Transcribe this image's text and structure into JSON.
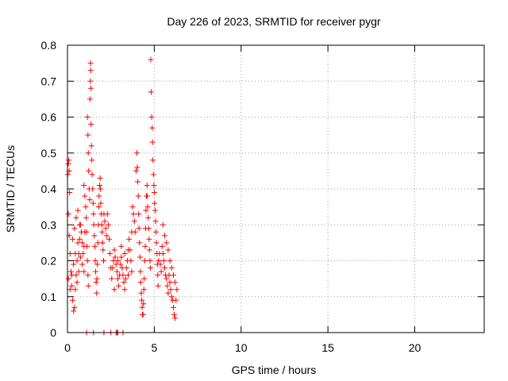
{
  "chart_data": {
    "type": "scatter",
    "title": "Day 226 of 2023, SRMTID for receiver pygr",
    "xlabel": "GPS time / hours",
    "ylabel": "SRMTID / TECUs",
    "xlim": [
      0,
      24
    ],
    "ylim": [
      0,
      0.8
    ],
    "xticks": [
      0,
      5,
      10,
      15,
      20
    ],
    "xtick_labels": [
      "0",
      "5",
      "10",
      "15",
      "20"
    ],
    "yticks": [
      0,
      0.1,
      0.2,
      0.3,
      0.4,
      0.5,
      0.6,
      0.7,
      0.8
    ],
    "ytick_labels": [
      "0",
      "0.1",
      "0.2",
      "0.3",
      "0.4",
      "0.5",
      "0.6",
      "0.7",
      "0.8"
    ],
    "grid": true,
    "marker": "+",
    "color": "#ff0000",
    "series": [
      {
        "name": "SRMTID",
        "points": [
          [
            0.02,
            0.44
          ],
          [
            0.05,
            0.47
          ],
          [
            0.08,
            0.48
          ],
          [
            0.1,
            0.45
          ],
          [
            0.12,
            0.39
          ],
          [
            0.05,
            0.33
          ],
          [
            0.1,
            0.27
          ],
          [
            0.15,
            0.22
          ],
          [
            0.2,
            0.17
          ],
          [
            0.25,
            0.13
          ],
          [
            0.3,
            0.09
          ],
          [
            0.35,
            0.06
          ],
          [
            0.4,
            0.07
          ],
          [
            0.45,
            0.12
          ],
          [
            0.5,
            0.16
          ],
          [
            0.55,
            0.2
          ],
          [
            0.6,
            0.25
          ],
          [
            0.65,
            0.22
          ],
          [
            0.7,
            0.26
          ],
          [
            0.75,
            0.3
          ],
          [
            0.8,
            0.28
          ],
          [
            0.85,
            0.25
          ],
          [
            0.9,
            0.22
          ],
          [
            0.95,
            0.24
          ],
          [
            1.0,
            0.28
          ],
          [
            0.05,
            0.15
          ],
          [
            0.15,
            0.12
          ],
          [
            0.25,
            0.16
          ],
          [
            0.35,
            0.19
          ],
          [
            0.45,
            0.22
          ],
          [
            0.55,
            0.14
          ],
          [
            0.65,
            0.17
          ],
          [
            0.75,
            0.21
          ],
          [
            0.85,
            0.19
          ],
          [
            0.95,
            0.17
          ],
          [
            0.3,
            0.26
          ],
          [
            0.4,
            0.29
          ],
          [
            0.5,
            0.32
          ],
          [
            0.6,
            0.34
          ],
          [
            0.7,
            0.3
          ],
          [
            0.95,
            0.41
          ],
          [
            1.0,
            0.38
          ],
          [
            1.05,
            0.35
          ],
          [
            1.08,
            0.32
          ],
          [
            1.1,
            0.28
          ],
          [
            1.12,
            0.24
          ],
          [
            1.15,
            0.2
          ],
          [
            1.18,
            0.16
          ],
          [
            1.2,
            0.13
          ],
          [
            1.15,
            0.6
          ],
          [
            1.18,
            0.55
          ],
          [
            1.2,
            0.5
          ],
          [
            1.22,
            0.45
          ],
          [
            1.25,
            0.4
          ],
          [
            1.28,
            0.37
          ],
          [
            1.3,
            0.65
          ],
          [
            1.32,
            0.7
          ],
          [
            1.33,
            0.75
          ],
          [
            1.34,
            0.73
          ],
          [
            1.35,
            0.68
          ],
          [
            1.36,
            0.58
          ],
          [
            1.38,
            0.52
          ],
          [
            1.4,
            0.48
          ],
          [
            1.42,
            0.44
          ],
          [
            1.45,
            0.4
          ],
          [
            1.48,
            0.36
          ],
          [
            1.5,
            0.33
          ],
          [
            1.52,
            0.3
          ],
          [
            1.55,
            0.27
          ],
          [
            1.58,
            0.24
          ],
          [
            1.6,
            0.2
          ],
          [
            1.62,
            0.17
          ],
          [
            1.65,
            0.14
          ],
          [
            1.68,
            0.11
          ],
          [
            1.7,
            0.15
          ],
          [
            1.72,
            0.19
          ],
          [
            1.75,
            0.25
          ],
          [
            1.78,
            0.3
          ],
          [
            1.8,
            0.35
          ],
          [
            1.82,
            0.38
          ],
          [
            1.85,
            0.41
          ],
          [
            1.88,
            0.43
          ],
          [
            1.9,
            0.4
          ],
          [
            1.92,
            0.36
          ],
          [
            1.95,
            0.33
          ],
          [
            1.98,
            0.3
          ],
          [
            2.0,
            0.28
          ],
          [
            2.02,
            0.25
          ],
          [
            2.05,
            0.23
          ],
          [
            2.08,
            0.2
          ],
          [
            2.1,
            0.33
          ],
          [
            2.15,
            0.31
          ],
          [
            2.2,
            0.29
          ],
          [
            2.25,
            0.27
          ],
          [
            2.3,
            0.33
          ],
          [
            2.35,
            0.3
          ],
          [
            2.4,
            0.26
          ],
          [
            2.45,
            0.22
          ],
          [
            2.5,
            0.18
          ],
          [
            2.55,
            0.15
          ],
          [
            2.6,
            0.18
          ],
          [
            2.65,
            0.2
          ],
          [
            2.7,
            0.23
          ],
          [
            2.75,
            0.21
          ],
          [
            2.8,
            0.19
          ],
          [
            2.85,
            0.17
          ],
          [
            2.9,
            0.15
          ],
          [
            2.95,
            0.13
          ],
          [
            3.0,
            0.16
          ],
          [
            3.05,
            0.19
          ],
          [
            3.1,
            0.21
          ],
          [
            3.15,
            0.18
          ],
          [
            3.2,
            0.16
          ],
          [
            3.25,
            0.14
          ],
          [
            3.3,
            0.12
          ],
          [
            3.35,
            0.15
          ],
          [
            3.4,
            0.18
          ],
          [
            3.45,
            0.2
          ],
          [
            3.5,
            0.23
          ],
          [
            3.55,
            0.26
          ],
          [
            3.6,
            0.23
          ],
          [
            3.65,
            0.2
          ],
          [
            3.7,
            0.17
          ],
          [
            2.7,
            0.12
          ],
          [
            2.9,
            0.2
          ],
          [
            3.1,
            0.24
          ],
          [
            3.3,
            0.22
          ],
          [
            3.5,
            0.16
          ],
          [
            3.7,
            0.28
          ],
          [
            3.75,
            0.35
          ],
          [
            3.8,
            0.33
          ],
          [
            3.85,
            0.31
          ],
          [
            3.9,
            0.28
          ],
          [
            3.95,
            0.45
          ],
          [
            4.0,
            0.5
          ],
          [
            4.02,
            0.46
          ],
          [
            4.05,
            0.42
          ],
          [
            4.08,
            0.38
          ],
          [
            4.1,
            0.33
          ],
          [
            4.12,
            0.29
          ],
          [
            4.15,
            0.25
          ],
          [
            4.18,
            0.21
          ],
          [
            4.2,
            0.17
          ],
          [
            4.22,
            0.14
          ],
          [
            4.25,
            0.11
          ],
          [
            4.28,
            0.09
          ],
          [
            4.3,
            0.07
          ],
          [
            4.32,
            0.05
          ],
          [
            4.35,
            0.05
          ],
          [
            4.38,
            0.08
          ],
          [
            4.4,
            0.12
          ],
          [
            4.42,
            0.15
          ],
          [
            4.45,
            0.2
          ],
          [
            4.48,
            0.24
          ],
          [
            4.5,
            0.29
          ],
          [
            4.52,
            0.34
          ],
          [
            4.55,
            0.38
          ],
          [
            4.58,
            0.41
          ],
          [
            4.6,
            0.38
          ],
          [
            4.62,
            0.35
          ],
          [
            4.65,
            0.32
          ],
          [
            4.68,
            0.29
          ],
          [
            4.7,
            0.26
          ],
          [
            4.72,
            0.23
          ],
          [
            4.75,
            0.2
          ],
          [
            4.78,
            0.18
          ],
          [
            4.8,
            0.76
          ],
          [
            4.82,
            0.67
          ],
          [
            4.85,
            0.6
          ],
          [
            4.88,
            0.57
          ],
          [
            4.9,
            0.53
          ],
          [
            4.92,
            0.48
          ],
          [
            4.95,
            0.44
          ],
          [
            4.98,
            0.41
          ],
          [
            5.0,
            0.39
          ],
          [
            5.02,
            0.36
          ],
          [
            5.05,
            0.34
          ],
          [
            5.08,
            0.31
          ],
          [
            5.1,
            0.28
          ],
          [
            5.12,
            0.25
          ],
          [
            5.15,
            0.22
          ],
          [
            5.18,
            0.19
          ],
          [
            5.2,
            0.16
          ],
          [
            5.22,
            0.13
          ],
          [
            5.25,
            0.2
          ],
          [
            5.3,
            0.22
          ],
          [
            5.35,
            0.19
          ],
          [
            5.4,
            0.17
          ],
          [
            5.45,
            0.24
          ],
          [
            5.5,
            0.22
          ],
          [
            5.55,
            0.2
          ],
          [
            5.6,
            0.18
          ],
          [
            5.65,
            0.16
          ],
          [
            5.7,
            0.15
          ],
          [
            5.75,
            0.13
          ],
          [
            5.8,
            0.11
          ],
          [
            5.85,
            0.16
          ],
          [
            5.9,
            0.14
          ],
          [
            5.95,
            0.12
          ],
          [
            6.0,
            0.1
          ],
          [
            6.05,
            0.09
          ],
          [
            6.1,
            0.07
          ],
          [
            6.15,
            0.05
          ],
          [
            6.2,
            0.04
          ],
          [
            6.25,
            0.09
          ],
          [
            6.3,
            0.12
          ],
          [
            5.5,
            0.3
          ],
          [
            5.6,
            0.27
          ],
          [
            5.7,
            0.25
          ],
          [
            5.8,
            0.23
          ],
          [
            5.9,
            0.2
          ],
          [
            6.0,
            0.18
          ],
          [
            6.1,
            0.16
          ],
          [
            6.2,
            0.14
          ],
          [
            1.1,
            0.0
          ],
          [
            1.5,
            0.0
          ],
          [
            2.1,
            0.0
          ],
          [
            2.5,
            0.0
          ],
          [
            2.8,
            0.0
          ],
          [
            2.85,
            0.0
          ],
          [
            2.9,
            0.0
          ],
          [
            3.2,
            0.0
          ]
        ]
      }
    ]
  }
}
